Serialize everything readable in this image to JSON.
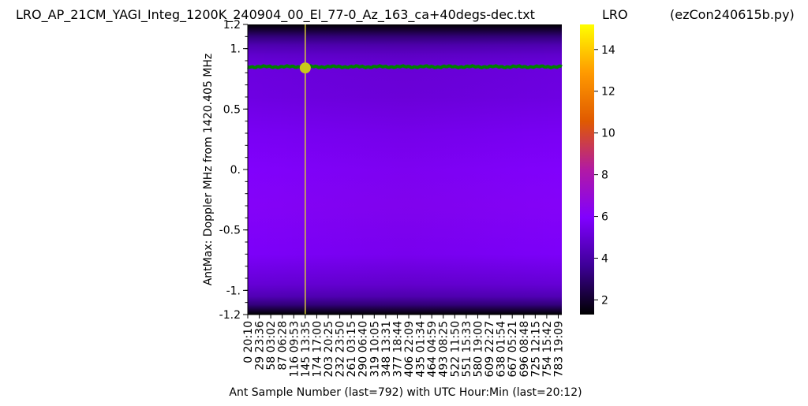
{
  "header": {
    "title": "LRO_AP_21CM_YAGI_Integ_1200K_240904_00_El_77-0_Az_163_ca+40degs-dec.txt",
    "station": "LRO",
    "program": "(ezCon240615b.py)"
  },
  "chart_data": {
    "type": "heatmap",
    "ylabel": "AntMax:  Doppler MHz from 1420.405 MHz",
    "xlabel": "Ant Sample Number (last=792) with UTC Hour:Min (last=20:12)",
    "ylim": [
      -1.2,
      1.2
    ],
    "xlim": [
      0,
      792
    ],
    "y_ticks": [
      {
        "value": 1.2,
        "label": "1.2"
      },
      {
        "value": 1.0,
        "label": "1."
      },
      {
        "value": 0.5,
        "label": "0.5"
      },
      {
        "value": 0.0,
        "label": "0."
      },
      {
        "value": -0.5,
        "label": "-0.5"
      },
      {
        "value": -1.0,
        "label": "-1."
      },
      {
        "value": -1.2,
        "label": "-1.2"
      }
    ],
    "x_ticks": [
      {
        "value": 0,
        "label": "0  20:10"
      },
      {
        "value": 29,
        "label": "29  23:36"
      },
      {
        "value": 58,
        "label": "58  03:02"
      },
      {
        "value": 87,
        "label": "87  06:28"
      },
      {
        "value": 116,
        "label": "116  09:53"
      },
      {
        "value": 145,
        "label": "145  13:35"
      },
      {
        "value": 174,
        "label": "174  17:00"
      },
      {
        "value": 203,
        "label": "203  20:25"
      },
      {
        "value": 232,
        "label": "232  23:50"
      },
      {
        "value": 261,
        "label": "261  03:15"
      },
      {
        "value": 290,
        "label": "290  06:40"
      },
      {
        "value": 319,
        "label": "319  10:05"
      },
      {
        "value": 348,
        "label": "348  13:31"
      },
      {
        "value": 377,
        "label": "377  18:44"
      },
      {
        "value": 406,
        "label": "406  22:09"
      },
      {
        "value": 435,
        "label": "435  01:34"
      },
      {
        "value": 464,
        "label": "464  04:59"
      },
      {
        "value": 493,
        "label": "493  08:25"
      },
      {
        "value": 522,
        "label": "522  11:50"
      },
      {
        "value": 551,
        "label": "551  15:33"
      },
      {
        "value": 580,
        "label": "580  19:00"
      },
      {
        "value": 609,
        "label": "609  22:27"
      },
      {
        "value": 638,
        "label": "638  01:54"
      },
      {
        "value": 667,
        "label": "667  05:21"
      },
      {
        "value": 696,
        "label": "696  08:48"
      },
      {
        "value": 725,
        "label": "725  12:15"
      },
      {
        "value": 754,
        "label": "754  15:42"
      },
      {
        "value": 783,
        "label": "783  19:09"
      }
    ],
    "colorbar": {
      "colormap": "gnuplot",
      "range": [
        1.3,
        15.2
      ],
      "ticks": [
        2,
        4,
        6,
        8,
        10,
        12,
        14
      ]
    },
    "colormap_stops": [
      "#000000",
      "#3d0096",
      "#8000ff",
      "#b21aa3",
      "#e05a00",
      "#ff9a00",
      "#ffff00"
    ],
    "doppler_profile": [
      {
        "y": -1.2,
        "value": 1.3
      },
      {
        "y": -1.17,
        "value": 2.0
      },
      {
        "y": -1.12,
        "value": 3.2
      },
      {
        "y": -1.05,
        "value": 4.3
      },
      {
        "y": -0.95,
        "value": 5.0
      },
      {
        "y": -0.7,
        "value": 5.8
      },
      {
        "y": -0.3,
        "value": 6.1
      },
      {
        "y": 0.0,
        "value": 6.0
      },
      {
        "y": 0.3,
        "value": 5.7
      },
      {
        "y": 0.6,
        "value": 5.3
      },
      {
        "y": 0.85,
        "value": 5.2
      },
      {
        "y": 0.95,
        "value": 4.8
      },
      {
        "y": 1.03,
        "value": 4.2
      },
      {
        "y": 1.1,
        "value": 3.2
      },
      {
        "y": 1.15,
        "value": 2.2
      },
      {
        "y": 1.2,
        "value": 1.3
      }
    ],
    "antmax_line": {
      "color": "#008000",
      "y_value": 0.85
    },
    "marker": {
      "x": 145,
      "y": 0.84,
      "color": "#c8c81a"
    },
    "vertical_line": {
      "x": 145,
      "color": "#d4c83a"
    }
  }
}
